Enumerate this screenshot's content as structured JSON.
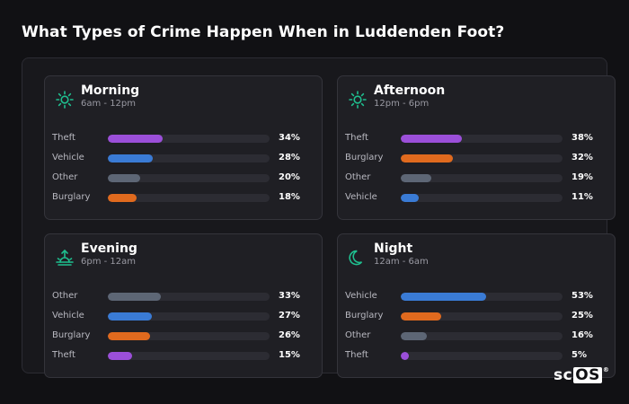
{
  "page": {
    "title": "What Types of Crime Happen When in Luddenden Foot?"
  },
  "colors": {
    "Theft": "#9b4fd9",
    "Vehicle": "#3a7bd5",
    "Other": "#5d6675",
    "Burglary": "#e06a1e",
    "icon_accent": "#1fbf8f"
  },
  "cards": [
    {
      "title": "Morning",
      "subtitle": "6am - 12pm",
      "icon": "sun-icon",
      "rows": [
        {
          "label": "Theft",
          "value": "34%",
          "pct": 34
        },
        {
          "label": "Vehicle",
          "value": "28%",
          "pct": 28
        },
        {
          "label": "Other",
          "value": "20%",
          "pct": 20
        },
        {
          "label": "Burglary",
          "value": "18%",
          "pct": 18
        }
      ]
    },
    {
      "title": "Afternoon",
      "subtitle": "12pm - 6pm",
      "icon": "sun-icon",
      "rows": [
        {
          "label": "Theft",
          "value": "38%",
          "pct": 38
        },
        {
          "label": "Burglary",
          "value": "32%",
          "pct": 32
        },
        {
          "label": "Other",
          "value": "19%",
          "pct": 19
        },
        {
          "label": "Vehicle",
          "value": "11%",
          "pct": 11
        }
      ]
    },
    {
      "title": "Evening",
      "subtitle": "6pm - 12am",
      "icon": "sunset-icon",
      "rows": [
        {
          "label": "Other",
          "value": "33%",
          "pct": 33
        },
        {
          "label": "Vehicle",
          "value": "27%",
          "pct": 27
        },
        {
          "label": "Burglary",
          "value": "26%",
          "pct": 26
        },
        {
          "label": "Theft",
          "value": "15%",
          "pct": 15
        }
      ]
    },
    {
      "title": "Night",
      "subtitle": "12am - 6am",
      "icon": "moon-icon",
      "rows": [
        {
          "label": "Vehicle",
          "value": "53%",
          "pct": 53
        },
        {
          "label": "Burglary",
          "value": "25%",
          "pct": 25
        },
        {
          "label": "Other",
          "value": "16%",
          "pct": 16
        },
        {
          "label": "Theft",
          "value": "5%",
          "pct": 5
        }
      ]
    }
  ],
  "logo": {
    "text": "sc",
    "boxed": "OS",
    "mark": "®"
  }
}
